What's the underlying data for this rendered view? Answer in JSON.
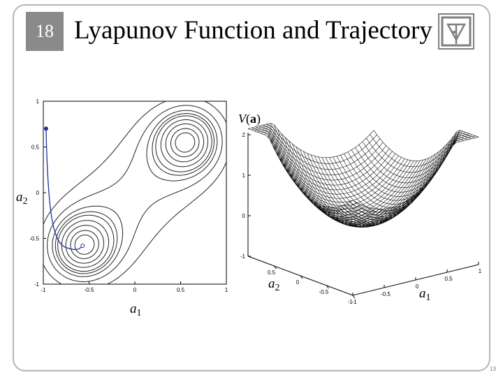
{
  "slide": {
    "number": "18",
    "title": "Lyapunov Function and Trajectory",
    "page_number": "13"
  },
  "logo": {
    "icon": "institution-logo-icon",
    "color": "#7f7f7f"
  },
  "labels": {
    "a2_left": {
      "var": "a",
      "sub": "2"
    },
    "a1_bottom": {
      "var": "a",
      "sub": "1"
    },
    "a2_surface": {
      "var": "a",
      "sub": "2"
    },
    "a1_surface": {
      "var": "a",
      "sub": "1"
    },
    "surface_title_v": "V",
    "surface_title_open": "(",
    "surface_title_arg": "a",
    "surface_title_close": ")"
  },
  "chart_data": [
    {
      "type": "contour",
      "xlim": [
        -1,
        1
      ],
      "ylim": [
        -1,
        1
      ],
      "x_ticks": [
        "-1",
        "-0.5",
        "0",
        "0.5",
        "1"
      ],
      "y_ticks": [
        "1",
        "0.5",
        "0",
        "-0.5",
        "-1"
      ],
      "minima": [
        [
          -0.55,
          -0.57
        ],
        [
          0.55,
          0.55
        ]
      ],
      "trajectory": {
        "start": [
          -0.97,
          0.7
        ],
        "end": [
          -0.57,
          -0.58
        ],
        "color": "#1f2fa0"
      }
    },
    {
      "type": "surface",
      "z_ticks": [
        "2",
        "1",
        "0",
        "-1"
      ],
      "a2_ticks": [
        "0.5",
        "0",
        "-0.5",
        "-1"
      ],
      "a1_ticks": [
        "-1",
        "-0.5",
        "0",
        "0.5",
        "1"
      ]
    }
  ]
}
